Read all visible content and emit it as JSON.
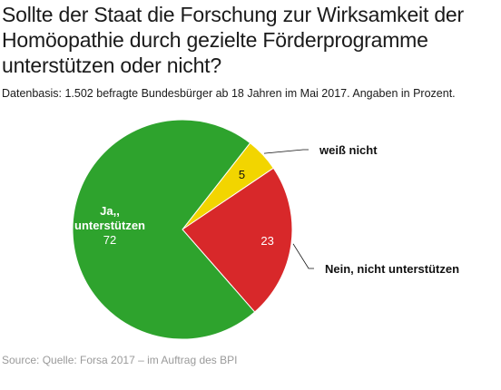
{
  "header": {
    "title": "Sollte der Staat die Forschung zur Wirksamkeit der Homöopathie durch gezielte Förderprogramme unterstützen oder nicht?",
    "subtitle": "Datenbasis: 1.502 befragte Bundesbürger ab 18 Jahren im Mai 2017. Angaben in Prozent."
  },
  "chart_data": {
    "type": "pie",
    "title": "Sollte der Staat die Forschung zur Wirksamkeit der Homöopathie durch gezielte Förderprogramme unterstützen oder nicht?",
    "unit": "Prozent",
    "slices": [
      {
        "label": "weiß nicht",
        "value": 5,
        "color": "#f2d500"
      },
      {
        "label": "Nein, nicht unterstützen",
        "value": 23,
        "color": "#d8282a"
      },
      {
        "label": "Ja, unterstützen",
        "value": 72,
        "color": "#2ea32d"
      }
    ],
    "slice_order": "clockwise from the upper right, starting with the yellow slice",
    "label_placement": "Ja: inside the slice; weiß nicht and Nein: outside, right of the pie with leader lines"
  },
  "footer": {
    "source": "Source: Quelle: Forsa 2017 – im Auftrag des BPI"
  }
}
